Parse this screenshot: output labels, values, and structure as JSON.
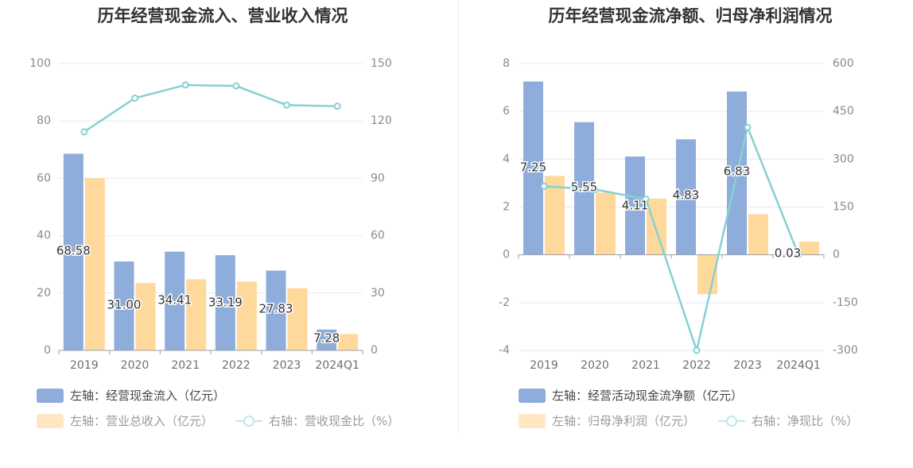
{
  "colors": {
    "bar1": "#8fadda",
    "bar2": "#ffd89c",
    "line": "#85d1d4",
    "grid": "#e6e9f3",
    "axis": "#9aa0a8"
  },
  "chart_data": [
    {
      "type": "bar",
      "title": "历年经营现金流入、营业收入情况",
      "categories": [
        "2019",
        "2020",
        "2021",
        "2022",
        "2023",
        "2024Q1"
      ],
      "y_left": {
        "ticks": [
          "0",
          "20",
          "40",
          "60",
          "80",
          "100"
        ],
        "ylim": [
          0,
          100
        ]
      },
      "y_right": {
        "ticks": [
          "0",
          "30",
          "60",
          "90",
          "120",
          "150"
        ],
        "ylim": [
          0,
          150
        ]
      },
      "series": [
        {
          "name": "左轴：经营现金流入（亿元）",
          "axis": "left",
          "values": [
            68.58,
            31.0,
            34.41,
            33.19,
            27.83,
            7.28
          ],
          "labels": [
            "68.58",
            "31.00",
            "34.41",
            "33.19",
            "27.83",
            "7.28"
          ]
        },
        {
          "name": "左轴：营业总收入（亿元）",
          "axis": "left",
          "values": [
            60.0,
            23.5,
            24.8,
            24.0,
            21.7,
            5.7
          ]
        },
        {
          "name": "右轴：营收现金比（%）",
          "axis": "right",
          "type": "line",
          "values": [
            114.3,
            131.9,
            138.8,
            138.3,
            128.3,
            127.7
          ]
        }
      ],
      "legend": [
        "左轴：经营现金流入（亿元）",
        "左轴：营业总收入（亿元）",
        "右轴：营收现金比（%）"
      ]
    },
    {
      "type": "bar",
      "title": "历年经营现金流净额、归母净利润情况",
      "categories": [
        "2019",
        "2020",
        "2021",
        "2022",
        "2023",
        "2024Q1"
      ],
      "y_left": {
        "ticks": [
          "-4",
          "-2",
          "0",
          "2",
          "4",
          "6",
          "8"
        ],
        "ylim": [
          -4,
          8
        ]
      },
      "y_right": {
        "ticks": [
          "-300",
          "-150",
          "0",
          "150",
          "300",
          "450",
          "600"
        ],
        "ylim": [
          -300,
          600
        ]
      },
      "series": [
        {
          "name": "左轴：经营活动现金流净额（亿元）",
          "axis": "left",
          "values": [
            7.25,
            5.55,
            4.11,
            4.83,
            6.83,
            0.03
          ],
          "labels": [
            "7.25",
            "5.55",
            "4.11",
            "4.83",
            "6.83",
            "0.03"
          ]
        },
        {
          "name": "左轴：归母净利润（亿元）",
          "axis": "left",
          "values": [
            3.3,
            2.6,
            2.35,
            -1.65,
            1.7,
            0.55
          ]
        },
        {
          "name": "右轴：净现比（%）",
          "axis": "right",
          "type": "line",
          "values": [
            215,
            205,
            175,
            -300,
            400,
            0
          ]
        }
      ],
      "legend": [
        "左轴：经营活动现金流净额（亿元）",
        "左轴：归母净利润（亿元）",
        "右轴：净现比（%）"
      ]
    }
  ]
}
